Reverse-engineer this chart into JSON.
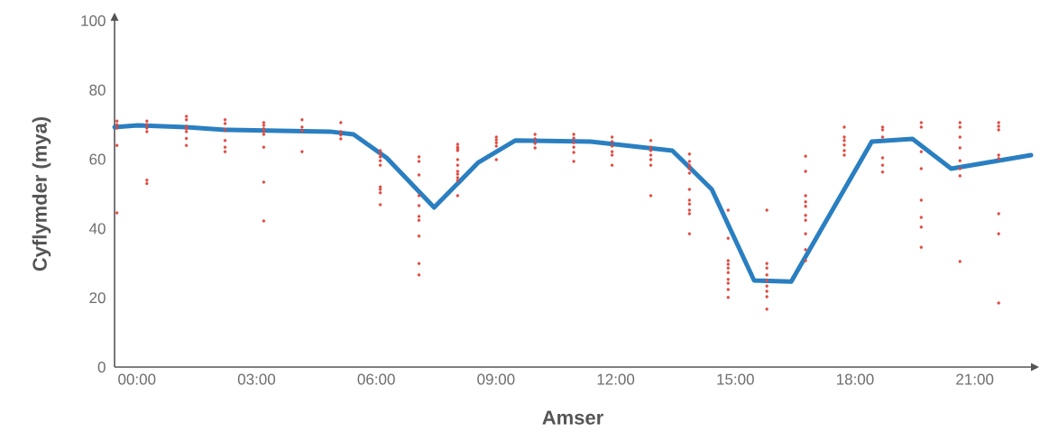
{
  "chart_data": {
    "type": "line",
    "xlabel": "Amser",
    "ylabel": "Cyflymder (mya)",
    "xlim": [
      -0.56,
      22.41
    ],
    "ylim": [
      0,
      100
    ],
    "xticks": [
      {
        "value": 0,
        "label": "00:00"
      },
      {
        "value": 3,
        "label": "03:00"
      },
      {
        "value": 6,
        "label": "06:00"
      },
      {
        "value": 9,
        "label": "09:00"
      },
      {
        "value": 12,
        "label": "12:00"
      },
      {
        "value": 15,
        "label": "15:00"
      },
      {
        "value": 18,
        "label": "18:00"
      },
      {
        "value": 21,
        "label": "21:00"
      }
    ],
    "yticks": [
      0,
      20,
      40,
      60,
      80,
      100
    ],
    "grid": false,
    "series": [
      {
        "type": "scatter",
        "color": "#e0483e",
        "marker": "circle",
        "x": [
          -0.5,
          -0.5,
          -0.5,
          -0.5,
          -0.5,
          0.25,
          0.25,
          0.25,
          0.25,
          0.25,
          0.25,
          1.24,
          1.24,
          1.24,
          1.24,
          1.24,
          1.24,
          1.24,
          2.21,
          2.21,
          2.21,
          2.21,
          2.21,
          2.21,
          3.18,
          3.18,
          3.18,
          3.18,
          3.18,
          3.18,
          3.18,
          3.18,
          4.14,
          4.14,
          4.14,
          4.14,
          5.11,
          5.11,
          5.11,
          5.11,
          6.1,
          6.1,
          6.1,
          6.1,
          6.1,
          6.1,
          6.1,
          6.1,
          6.1,
          7.07,
          7.07,
          7.07,
          7.07,
          7.07,
          7.07,
          7.07,
          7.07,
          7.07,
          7.07,
          8.04,
          8.04,
          8.04,
          8.04,
          8.04,
          8.04,
          8.04,
          8.04,
          8.04,
          8.04,
          8.04,
          9.01,
          9.01,
          9.01,
          9.01,
          9.01,
          9.98,
          9.98,
          9.98,
          9.98,
          10.95,
          10.95,
          10.95,
          10.95,
          10.95,
          10.95,
          11.91,
          11.91,
          11.91,
          11.91,
          11.91,
          11.91,
          12.88,
          12.88,
          12.88,
          12.88,
          12.88,
          12.88,
          12.88,
          13.85,
          13.85,
          13.85,
          13.85,
          13.85,
          13.85,
          13.85,
          13.85,
          13.85,
          13.85,
          13.85,
          14.82,
          14.82,
          14.82,
          14.82,
          14.82,
          14.82,
          14.82,
          14.82,
          14.82,
          14.82,
          15.79,
          15.79,
          15.79,
          15.79,
          15.79,
          15.79,
          15.79,
          15.79,
          15.79,
          16.76,
          16.76,
          16.76,
          16.76,
          16.76,
          16.76,
          16.76,
          16.76,
          16.76,
          16.76,
          17.73,
          17.73,
          17.73,
          17.73,
          17.73,
          17.73,
          18.69,
          18.69,
          18.69,
          18.69,
          18.69,
          18.69,
          19.66,
          19.66,
          19.66,
          19.66,
          19.66,
          19.66,
          19.66,
          19.66,
          20.63,
          20.63,
          20.63,
          20.63,
          20.63,
          20.63,
          20.63,
          20.63,
          21.6,
          21.6,
          21.6,
          21.6,
          21.6,
          21.6,
          21.6,
          21.6
        ],
        "values": [
          71,
          70,
          69,
          64,
          44.5,
          71,
          70,
          69,
          68,
          54,
          53,
          72.4,
          71.4,
          69.5,
          68.8,
          68,
          66,
          64,
          71.4,
          70.3,
          68.5,
          65.4,
          63.5,
          62.2,
          70.6,
          69.8,
          68.8,
          68,
          67.2,
          63.5,
          53.4,
          42.2,
          71.4,
          69.3,
          68.2,
          62.2,
          70.6,
          68,
          67,
          65.9,
          62.5,
          61.5,
          60.7,
          59.6,
          58.3,
          52,
          51.3,
          50.3,
          46.9,
          60.7,
          59.4,
          55.5,
          49.5,
          46.6,
          43.5,
          42.4,
          37.8,
          29.9,
          26.6,
          64.3,
          63.5,
          63,
          62.5,
          59.9,
          58.3,
          56.5,
          55.7,
          54.7,
          53.9,
          49.5,
          66.4,
          65.6,
          64.8,
          63.8,
          59.9,
          67.2,
          65.9,
          64.6,
          63.3,
          67.2,
          66.1,
          64.8,
          63.5,
          62,
          59.4,
          66.4,
          65.1,
          63.8,
          62.2,
          61.2,
          58.3,
          65.4,
          63.5,
          62.5,
          61.2,
          59.9,
          58.3,
          49.5,
          61.5,
          59.4,
          58.3,
          57.3,
          56,
          51.3,
          48.2,
          47.1,
          45.3,
          44.3,
          38.5,
          45.3,
          37.2,
          30.7,
          29.7,
          28.6,
          27.3,
          25.3,
          24.2,
          22.4,
          20.1,
          45.3,
          29.9,
          28.6,
          26.6,
          25,
          23.4,
          21.9,
          20.3,
          16.7,
          60.9,
          56.5,
          49.5,
          47.7,
          46.4,
          43.8,
          42.4,
          38.5,
          33.9,
          30.7,
          69.3,
          66.4,
          65.4,
          64.1,
          62.5,
          61.2,
          69.3,
          68.5,
          66.4,
          60.4,
          58.3,
          56.3,
          70.6,
          69.3,
          62.2,
          57.3,
          48.2,
          43.2,
          40.4,
          34.6,
          70.6,
          69.3,
          66.4,
          63.3,
          59.6,
          57.3,
          55.2,
          30.5,
          70.6,
          69.5,
          68.5,
          61.2,
          60.2,
          44.3,
          38.5,
          18.5
        ]
      },
      {
        "type": "line",
        "color": "#2a7fc1",
        "marker": "none",
        "line_style": "solid",
        "x": [
          -0.56,
          0.02,
          1.24,
          2.21,
          4.84,
          5.43,
          6.26,
          7.45,
          8.56,
          9.48,
          11.37,
          13.42,
          14.41,
          15.47,
          16.4,
          18.42,
          19.44,
          20.41,
          22.41
        ],
        "values": [
          69.3,
          69.8,
          69.3,
          68.5,
          68.0,
          67.2,
          60.4,
          46.1,
          59.1,
          65.4,
          65.1,
          62.5,
          51.3,
          25.0,
          24.7,
          65.1,
          65.9,
          57.3,
          61.2
        ]
      }
    ]
  }
}
